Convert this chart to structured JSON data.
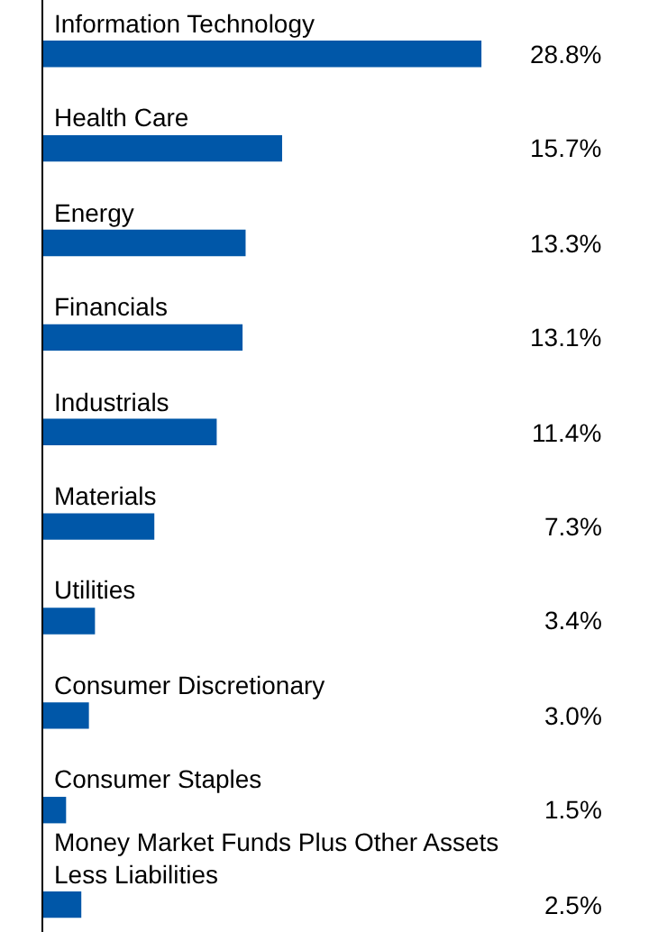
{
  "chart_data": {
    "type": "bar",
    "orientation": "horizontal",
    "categories": [
      "Information Technology",
      "Health Care",
      "Energy",
      "Financials",
      "Industrials",
      "Materials",
      "Utilities",
      "Consumer Discretionary",
      "Consumer Staples",
      "Money Market Funds Plus Other Assets Less Liabilities"
    ],
    "values": [
      28.8,
      15.7,
      13.3,
      13.1,
      11.4,
      7.3,
      3.4,
      3.0,
      1.5,
      2.5
    ],
    "value_labels": [
      "28.8%",
      "15.7%",
      "13.3%",
      "13.1%",
      "11.4%",
      "7.3%",
      "3.4%",
      "3.0%",
      "1.5%",
      "2.5%"
    ],
    "color": "#0057a8"
  }
}
